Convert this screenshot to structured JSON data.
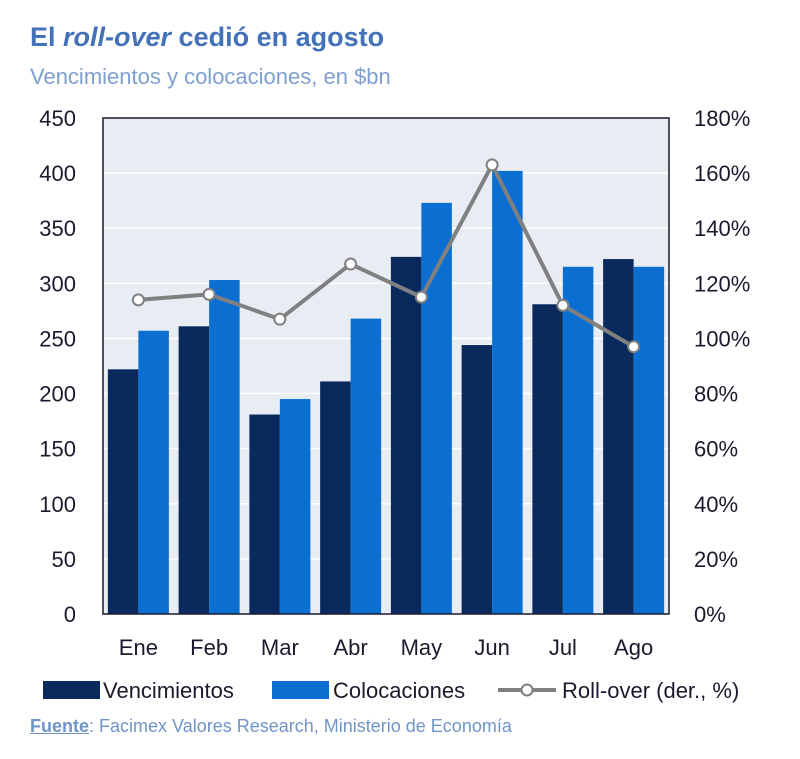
{
  "header": {
    "title_prefix": "El ",
    "title_em": "roll-over",
    "title_suffix": " cedió en agosto",
    "subtitle": "Vencimientos y colocaciones, en $bn"
  },
  "source": {
    "label": "Fuente",
    "text": ": Facimex Valores Research, Ministerio de Economía"
  },
  "colors": {
    "vencimientos": "#0a2a5e",
    "colocaciones": "#0a6fd1",
    "rollover": "#808080",
    "plot_bg": "#e8ecf3",
    "axis_text": "#1a1a2e",
    "title": "#4472b8"
  },
  "chart_data": {
    "type": "bar",
    "categories": [
      "Ene",
      "Feb",
      "Mar",
      "Abr",
      "May",
      "Jun",
      "Jul",
      "Ago"
    ],
    "series": [
      {
        "name": "Vencimientos",
        "type": "bar",
        "axis": "left",
        "values": [
          222,
          261,
          181,
          211,
          324,
          244,
          281,
          322
        ]
      },
      {
        "name": "Colocaciones",
        "type": "bar",
        "axis": "left",
        "values": [
          257,
          303,
          195,
          268,
          373,
          402,
          315,
          315
        ]
      },
      {
        "name": "Roll-over (der., %)",
        "type": "line",
        "axis": "right",
        "values": [
          114,
          116,
          107,
          127,
          115,
          163,
          112,
          97
        ]
      }
    ],
    "ylim": [
      0,
      450
    ],
    "yticks": [
      "0",
      "50",
      "100",
      "150",
      "200",
      "250",
      "300",
      "350",
      "400",
      "450"
    ],
    "y2lim": [
      0,
      180
    ],
    "y2ticks": [
      "0%",
      "20%",
      "40%",
      "60%",
      "80%",
      "100%",
      "120%",
      "140%",
      "160%",
      "180%"
    ],
    "grid": true,
    "legend_position": "bottom"
  }
}
